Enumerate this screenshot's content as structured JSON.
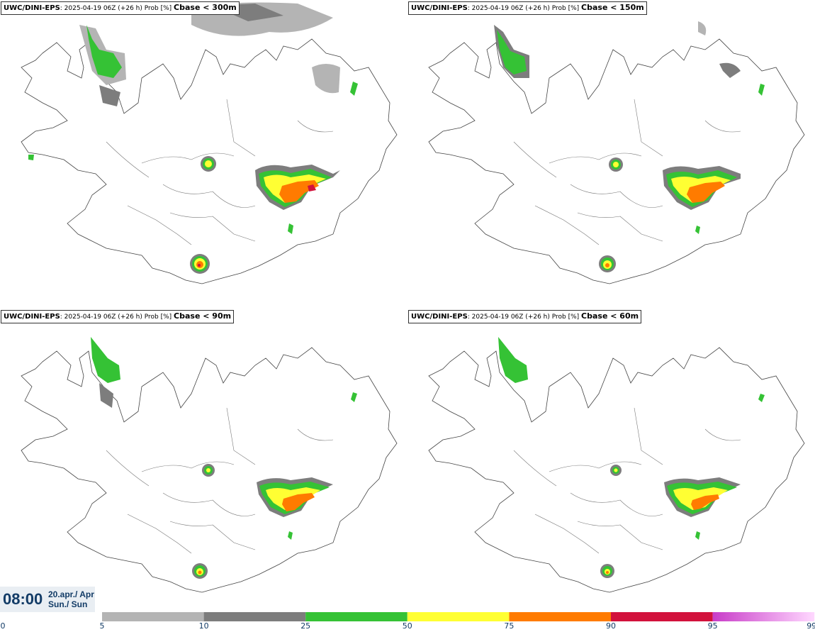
{
  "panels": [
    {
      "model": "UWC/DINI-EPS",
      "info": ": 2025-04-19 06Z (+26 h) Prob [%] ",
      "param": "Cbase < 300m"
    },
    {
      "model": "UWC/DINI-EPS",
      "info": ": 2025-04-19 06Z (+26 h) Prob [%] ",
      "param": "Cbase < 150m"
    },
    {
      "model": "UWC/DINI-EPS",
      "info": ": 2025-04-19 06Z (+26 h) Prob [%] ",
      "param": "Cbase < 90m"
    },
    {
      "model": "UWC/DINI-EPS",
      "info": ": 2025-04-19 06Z (+26 h) Prob [%] ",
      "param": "Cbase < 60m"
    }
  ],
  "time": {
    "clock": "08:00",
    "date_line": "20.apr./ Apr",
    "day_line": "Sun./ Sun"
  },
  "legend": {
    "ticks": [
      "0",
      "5",
      "10",
      "25",
      "50",
      "75",
      "90",
      "95",
      "99"
    ],
    "bins": [
      {
        "from": "5",
        "to": "10",
        "color": "#b4b4b4"
      },
      {
        "from": "10",
        "to": "25",
        "color": "#7d7d7d"
      },
      {
        "from": "25",
        "to": "50",
        "color": "#35c235"
      },
      {
        "from": "50",
        "to": "75",
        "color": "#ffff33"
      },
      {
        "from": "75",
        "to": "90",
        "color": "#ff7b00"
      },
      {
        "from": "90",
        "to": "95",
        "color": "#d2123c"
      },
      {
        "from": "95",
        "to": "99",
        "color": "#c83cc8"
      }
    ],
    "gradient_end": "#ffd8ff"
  }
}
